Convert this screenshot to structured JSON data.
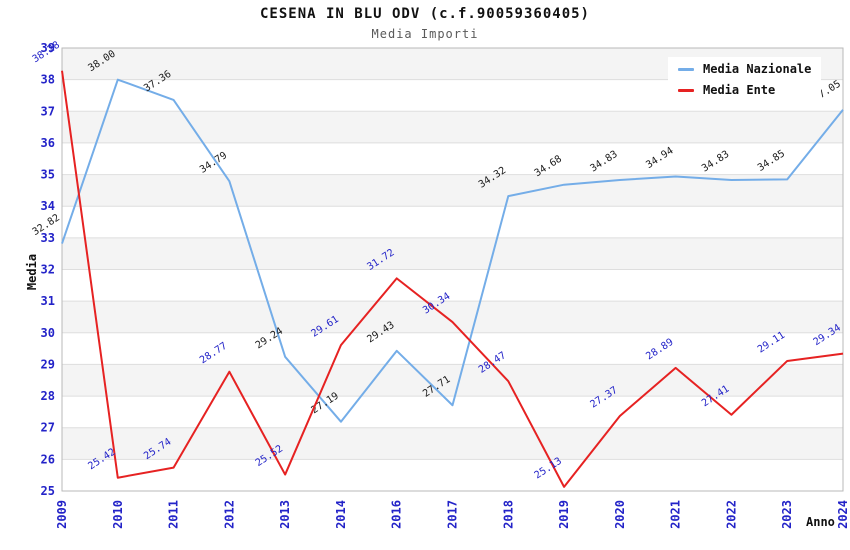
{
  "chart": {
    "title": "CESENA IN BLU ODV (c.f.90059360405)",
    "subtitle": "Media Importi",
    "colors": {
      "band_gray": "#f4f4f4",
      "gridline": "#dedede",
      "plot_border": "#b9b9b9",
      "tick_label_blue": "#2323c8",
      "title_black": "#111111"
    }
  },
  "chart_data": {
    "type": "line",
    "title": "CESENA IN BLU ODV (c.f.90059360405)",
    "subtitle": "Media Importi",
    "xlabel": "Anno",
    "ylabel": "Media",
    "ylim": [
      25,
      39
    ],
    "y_tick_step": 1,
    "grid": "horizontal-bands-alternating",
    "legend_position": "top-right",
    "categories": [
      "2009",
      "2010",
      "2011",
      "2012",
      "2013",
      "2014",
      "2016",
      "2017",
      "2018",
      "2019",
      "2020",
      "2021",
      "2022",
      "2023",
      "2024"
    ],
    "series": [
      {
        "name": "Media Nazionale",
        "color": "#74ade8",
        "label_color": "#1a1a1a",
        "values": [
          32.82,
          38.0,
          37.36,
          34.79,
          29.24,
          27.19,
          29.43,
          27.71,
          34.32,
          34.68,
          34.83,
          34.94,
          34.83,
          34.85,
          37.05
        ]
      },
      {
        "name": "Media Ente",
        "color": "#e62222",
        "label_color": "#2323c8",
        "values": [
          38.28,
          25.42,
          25.74,
          28.77,
          25.52,
          29.61,
          31.72,
          30.34,
          28.47,
          25.13,
          27.37,
          28.89,
          27.41,
          29.11,
          29.34
        ]
      }
    ]
  }
}
